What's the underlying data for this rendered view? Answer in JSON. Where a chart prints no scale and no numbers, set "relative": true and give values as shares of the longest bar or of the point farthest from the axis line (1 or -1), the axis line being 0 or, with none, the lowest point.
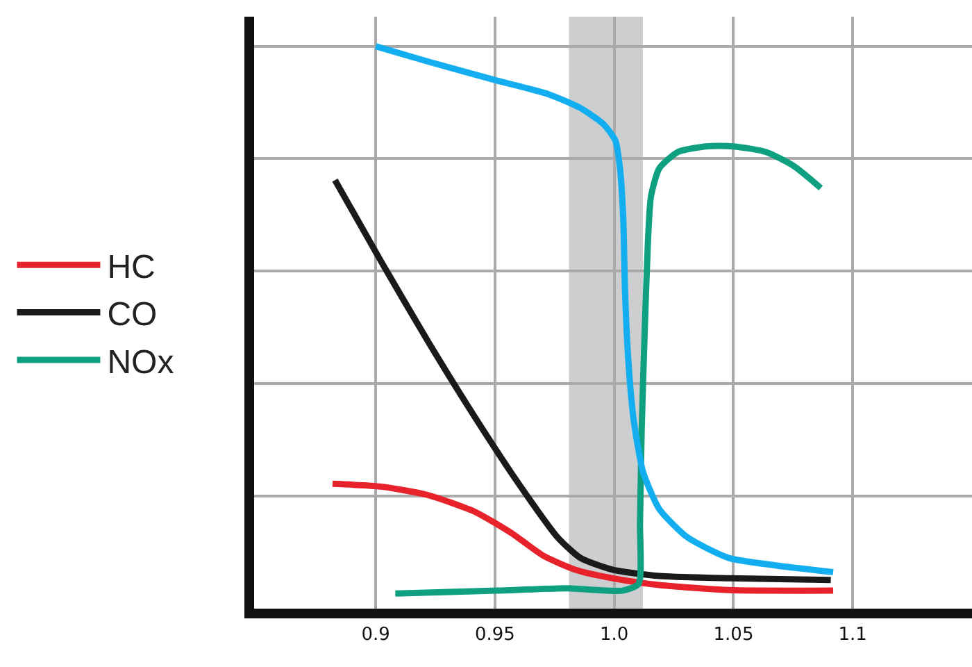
{
  "chart_data": {
    "type": "line",
    "relative": true,
    "xlim": [
      0.849,
      1.15
    ],
    "xticks": [
      0.9,
      0.95,
      {
        "value": 1.0,
        "label": "1.0"
      },
      1.05,
      1.1
    ],
    "grid": true,
    "legend": "left",
    "marker": "none",
    "line_style": "solid",
    "bands": [
      {
        "axis": "x",
        "from": 0.981,
        "to": 1.012,
        "color": "#cdced0"
      }
    ],
    "series": [
      {
        "name": "HC",
        "color": "#e8222a",
        "x": [
          0.8819,
          0.9023,
          0.9218,
          0.9412,
          0.9567,
          0.9703,
          0.9839,
          0.9995,
          1.0189,
          1.0481,
          1.0918
        ],
        "values": [
          0.222,
          0.217,
          0.202,
          0.173,
          0.135,
          0.094,
          0.069,
          0.054,
          0.042,
          0.033,
          0.032
        ]
      },
      {
        "name": "CO",
        "color": "#1a1a1a",
        "x": [
          0.8829,
          0.9023,
          0.9218,
          0.9412,
          0.9606,
          0.9762,
          0.9859,
          0.9995,
          1.0189,
          1.0481,
          1.0908
        ],
        "values": [
          0.762,
          0.617,
          0.476,
          0.343,
          0.218,
          0.127,
          0.09,
          0.069,
          0.058,
          0.054,
          0.051
        ]
      },
      {
        "name": "NOx",
        "color": "#0ea080",
        "x": [
          0.9082,
          0.9509,
          0.9801,
          1.0034,
          1.0102,
          1.0108,
          1.0115,
          1.0127,
          1.0141,
          1.0154,
          1.0189,
          1.0267,
          1.0384,
          1.05,
          1.0636,
          1.0753,
          1.0866
        ],
        "values": [
          0.027,
          0.032,
          0.036,
          0.032,
          0.044,
          0.152,
          0.318,
          0.484,
          0.65,
          0.733,
          0.783,
          0.812,
          0.822,
          0.822,
          0.812,
          0.787,
          0.748
        ]
      },
      {
        "color": "#12aeef",
        "x": [
          0.9,
          0.9218,
          0.9499,
          0.9723,
          0.9859,
          0.9956,
          1.0005,
          1.0024,
          1.0038,
          1.0045,
          1.0059,
          1.0082,
          1.0121,
          1.0189,
          1.0306,
          1.0481,
          1.0675,
          1.0918
        ],
        "values": [
          1.0,
          0.973,
          0.94,
          0.915,
          0.89,
          0.861,
          0.832,
          0.783,
          0.691,
          0.567,
          0.442,
          0.334,
          0.243,
          0.177,
          0.127,
          0.09,
          0.077,
          0.065
        ]
      }
    ]
  }
}
